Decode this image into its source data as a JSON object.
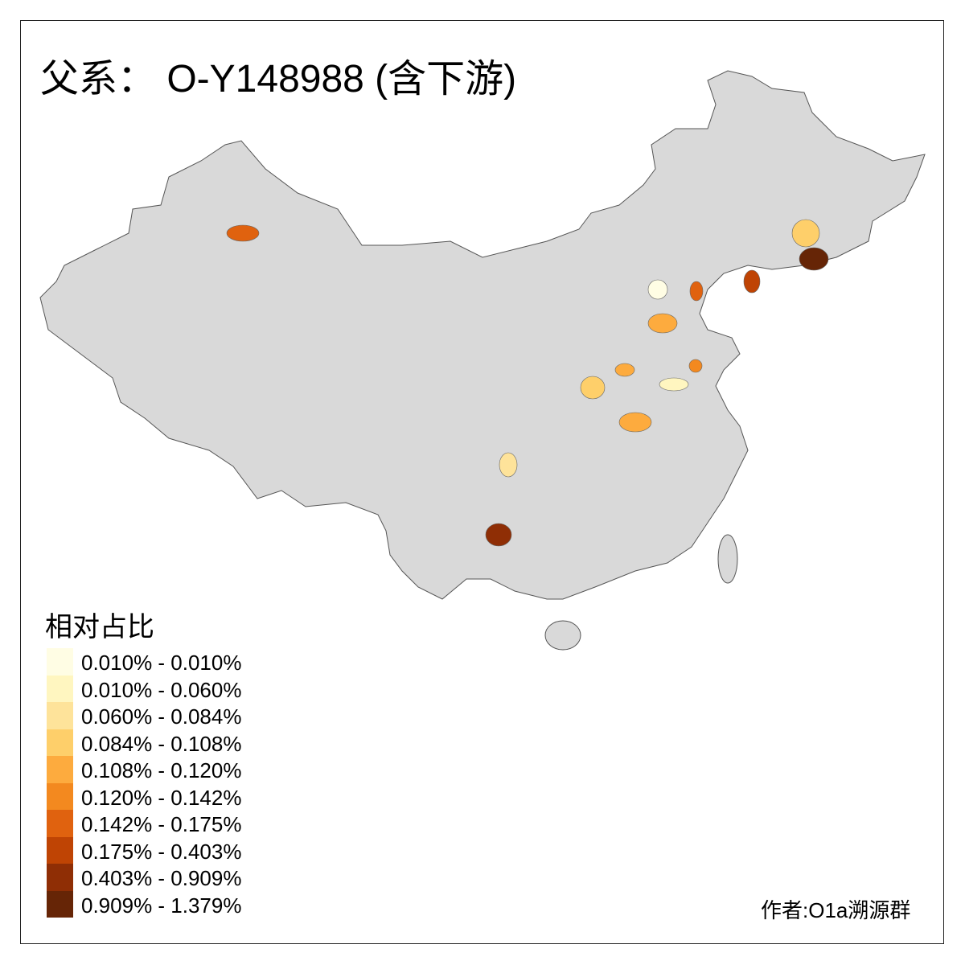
{
  "title": "父系： O-Y148988 (含下游)",
  "legend": {
    "title": "相对占比",
    "items": [
      {
        "label": "0.010% - 0.010%",
        "color": "#FFFDE4"
      },
      {
        "label": "0.010% - 0.060%",
        "color": "#FFF6C0"
      },
      {
        "label": "0.060% - 0.084%",
        "color": "#FEE39A"
      },
      {
        "label": "0.084% - 0.108%",
        "color": "#FECF6A"
      },
      {
        "label": "0.108% - 0.120%",
        "color": "#FDAB3E"
      },
      {
        "label": "0.120% - 0.142%",
        "color": "#F3891F"
      },
      {
        "label": "0.142% - 0.175%",
        "color": "#E0620F"
      },
      {
        "label": "0.175% - 0.403%",
        "color": "#BF4404"
      },
      {
        "label": "0.403% - 0.909%",
        "color": "#8F2E05"
      },
      {
        "label": "0.909% - 1.379%",
        "color": "#662506"
      }
    ]
  },
  "map": {
    "base_color": "#D9D9D9",
    "border_color": "#555555",
    "highlighted_regions": [
      {
        "class": 6,
        "color": "#E0620F"
      },
      {
        "class": 3,
        "color": "#FECF6A"
      },
      {
        "class": 9,
        "color": "#662506"
      },
      {
        "class": 0,
        "color": "#FFFDE4"
      },
      {
        "class": 6,
        "color": "#E0620F"
      },
      {
        "class": 7,
        "color": "#BF4404"
      },
      {
        "class": 4,
        "color": "#FDAB3E"
      },
      {
        "class": 4,
        "color": "#FDAB3E"
      },
      {
        "class": 3,
        "color": "#FECF6A"
      },
      {
        "class": 5,
        "color": "#F3891F"
      },
      {
        "class": 1,
        "color": "#FFF6C0"
      },
      {
        "class": 4,
        "color": "#FDAB3E"
      },
      {
        "class": 2,
        "color": "#FEE39A"
      },
      {
        "class": 8,
        "color": "#8F2E05"
      }
    ]
  },
  "credit": "作者:O1a溯源群"
}
